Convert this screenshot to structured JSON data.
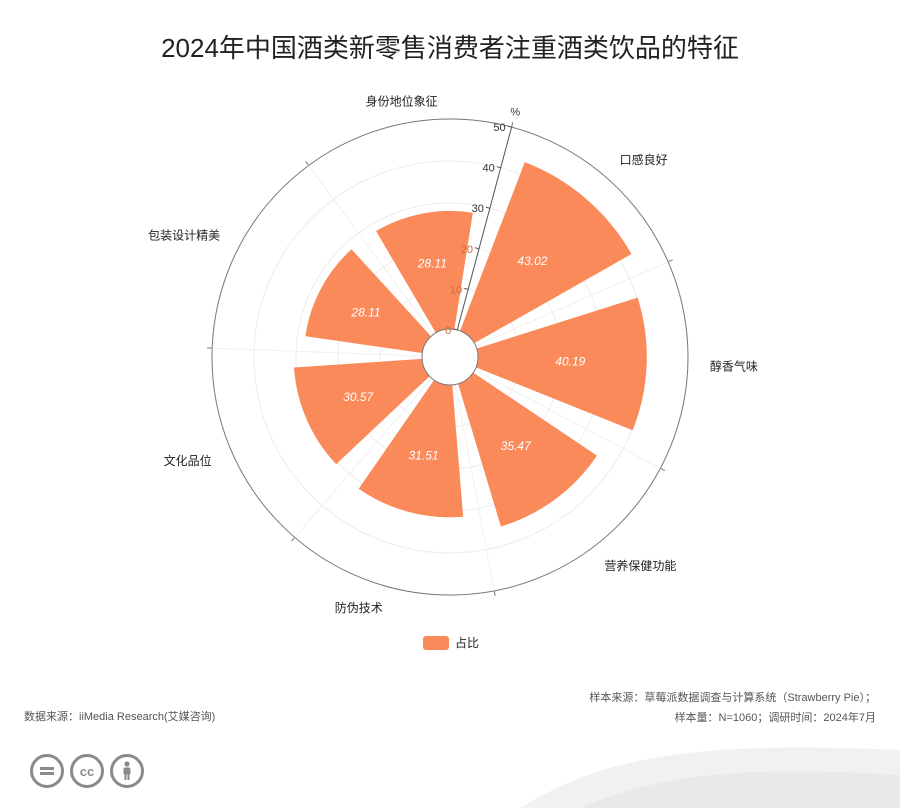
{
  "title": "2024年中国酒类新零售消费者注重酒类饮品的特征",
  "chart_data": {
    "type": "polar-bar",
    "unit": "%",
    "categories": [
      "口感良好",
      "醇香气味",
      "营养保健功能",
      "防伪技术",
      "文化品位",
      "包装设计精美",
      "身份地位象征"
    ],
    "series": [
      {
        "name": "占比",
        "values": [
          43.02,
          40.19,
          35.47,
          31.51,
          30.57,
          28.11,
          28.11
        ]
      }
    ],
    "radius_axis": {
      "min": 0,
      "max": 50,
      "ticks": [
        0,
        10,
        20,
        30,
        40,
        50
      ]
    },
    "legend_position": "bottom-center",
    "color": "#fa8a5a"
  },
  "footer": {
    "source_left": "数据来源：iiMedia Research(艾媒咨询)",
    "source_right_line1": "样本来源：草莓派数据调查与计算系统（Strawberry Pie）；",
    "source_right_line2": "样本量：N=1060；调研时间：2024年7月"
  },
  "license_icons": [
    "equals-icon",
    "cc-icon",
    "person-icon"
  ],
  "license_labels": {
    "cc": "cc"
  }
}
